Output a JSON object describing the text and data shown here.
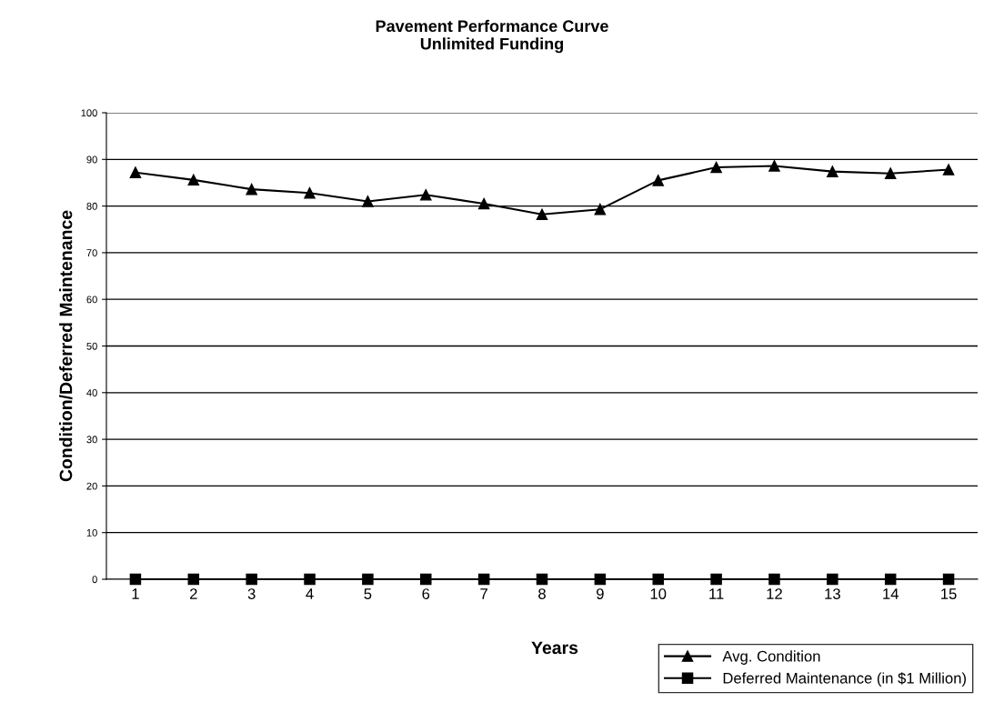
{
  "chart_data": {
    "type": "line",
    "title": "Pavement Performance Curve\nUnlimited Funding",
    "xlabel": "Years",
    "ylabel": "Condition/Deferred Maintenance",
    "categories": [
      "1",
      "2",
      "3",
      "4",
      "5",
      "6",
      "7",
      "8",
      "9",
      "10",
      "11",
      "12",
      "13",
      "14",
      "15"
    ],
    "series": [
      {
        "name": "Avg. Condition",
        "color": "#000000",
        "marker": "triangle",
        "values": [
          87.2,
          85.6,
          83.6,
          82.8,
          81.0,
          82.4,
          80.5,
          78.2,
          79.3,
          85.5,
          88.3,
          88.6,
          87.4,
          87.0,
          87.8
        ]
      },
      {
        "name": "Deferred Maintenance (in $1 Million)",
        "color": "#000000",
        "marker": "square",
        "values": [
          0,
          0,
          0,
          0,
          0,
          0,
          0,
          0,
          0,
          0,
          0,
          0,
          0,
          0,
          0
        ]
      }
    ],
    "ylim": [
      0,
      100
    ],
    "yticks": [
      0,
      10,
      20,
      30,
      40,
      50,
      60,
      70,
      80,
      90,
      100
    ],
    "grid": "y",
    "legend": "bottom right",
    "line_style": "solid"
  }
}
